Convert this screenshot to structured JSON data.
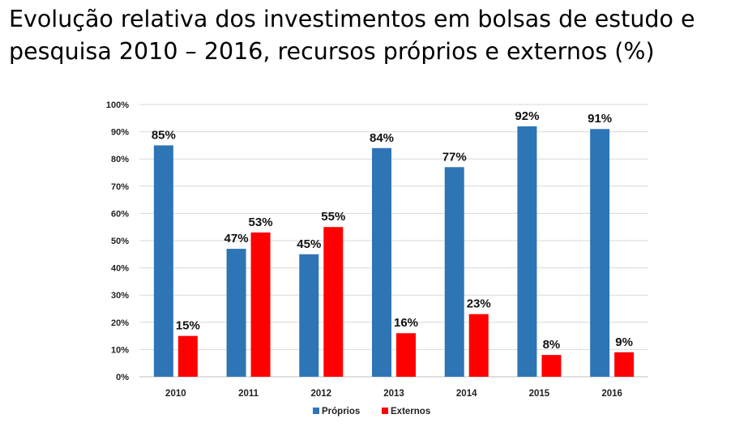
{
  "title_line1": "Evolução relativa dos investimentos em bolsas de estudo e",
  "title_line2": "pesquisa 2010 – 2016, recursos próprios e externos (%)",
  "chart_data": {
    "type": "bar",
    "title": "Evolução relativa dos investimentos em bolsas de estudo e pesquisa 2010 – 2016, recursos próprios e externos (%)",
    "categories": [
      "2010",
      "2011",
      "2012",
      "2013",
      "2014",
      "2015",
      "2016"
    ],
    "series": [
      {
        "name": "Próprios",
        "color": "#2e75b6",
        "values": [
          85,
          47,
          45,
          84,
          77,
          92,
          91
        ],
        "labels": [
          "85%",
          "47%",
          "45%",
          "84%",
          "77%",
          "92%",
          "91%"
        ]
      },
      {
        "name": "Externos",
        "color": "#ff0000",
        "values": [
          15,
          53,
          55,
          16,
          23,
          8,
          9
        ],
        "labels": [
          "15%",
          "53%",
          "55%",
          "16%",
          "23%",
          "8%",
          "9%"
        ]
      }
    ],
    "ylim": [
      0,
      100
    ],
    "yticks": [
      0,
      10,
      20,
      30,
      40,
      50,
      60,
      70,
      80,
      90,
      100
    ],
    "ytick_labels": [
      "0%",
      "10%",
      "20%",
      "30%",
      "40%",
      "50%",
      "60%",
      "70%",
      "80%",
      "90%",
      "100%"
    ],
    "xlabel": "",
    "ylabel": "",
    "grid": true,
    "legend": "bottom-center"
  }
}
